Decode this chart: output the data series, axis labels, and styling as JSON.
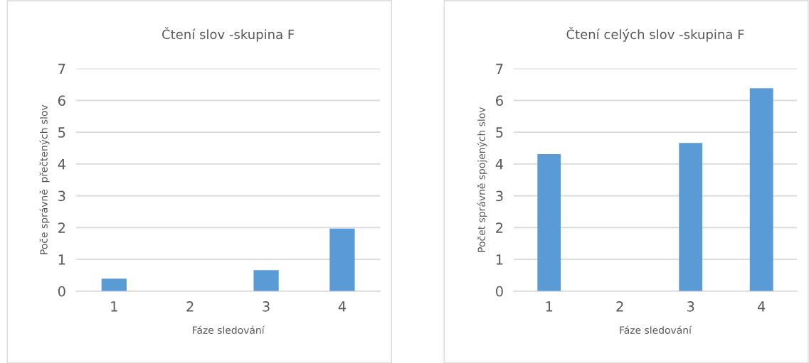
{
  "chart_data": [
    {
      "type": "bar",
      "title": "Čtení slov -skupina F",
      "xlabel": "Fáze sledování",
      "ylabel": "Poče správně  přečtených slov",
      "categories": [
        "1",
        "2",
        "3",
        "4"
      ],
      "values": [
        0.39,
        0,
        0.66,
        1.97
      ],
      "color": "#5b9bd5",
      "ylim": [
        0,
        7
      ],
      "yticks": [
        0,
        1,
        2,
        3,
        4,
        5,
        6,
        7
      ],
      "grid": "y",
      "legend": false
    },
    {
      "type": "bar",
      "title": "Čtení celých slov -skupina F",
      "xlabel": "Fáze sledování",
      "ylabel": "Počet správně spojených slov",
      "categories": [
        "1",
        "2",
        "3",
        "4"
      ],
      "values": [
        4.31,
        0,
        4.66,
        6.38
      ],
      "color": "#5b9bd5",
      "ylim": [
        0,
        7
      ],
      "yticks": [
        0,
        1,
        2,
        3,
        4,
        5,
        6,
        7
      ],
      "grid": "y",
      "legend": false
    }
  ]
}
